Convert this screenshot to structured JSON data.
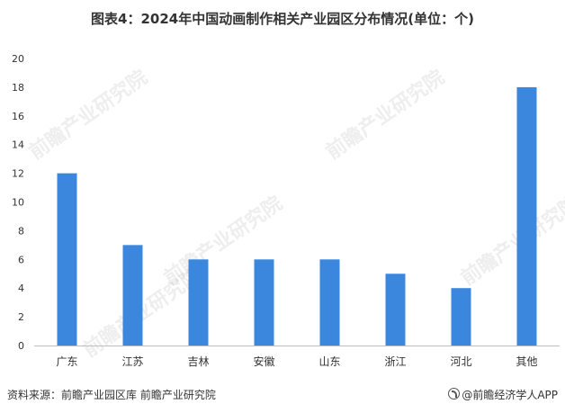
{
  "title": "图表4：2024年中国动画制作相关产业园区分布情况(单位：个)",
  "source": "资料来源：前瞻产业园区库 前瞻产业研究院",
  "brand": "@前瞻经济学人APP",
  "watermark_text": "前瞻产业研究院",
  "colors": {
    "bar": "#3C87DE",
    "axis": "#BFBFBF",
    "text": "#333333"
  },
  "chart_data": {
    "type": "bar",
    "categories": [
      "广东",
      "江苏",
      "吉林",
      "安徽",
      "山东",
      "浙江",
      "河北",
      "其他"
    ],
    "values": [
      12,
      7,
      6,
      6,
      6,
      5,
      4,
      18
    ],
    "yticks": [
      "0",
      "2",
      "4",
      "6",
      "8",
      "10",
      "12",
      "14",
      "16",
      "18",
      "20"
    ],
    "ylim": [
      0,
      20
    ],
    "grid": false,
    "legend": "none",
    "title": "图表4：2024年中国动画制作相关产业园区分布情况(单位：个)",
    "xlabel": "",
    "ylabel": ""
  }
}
